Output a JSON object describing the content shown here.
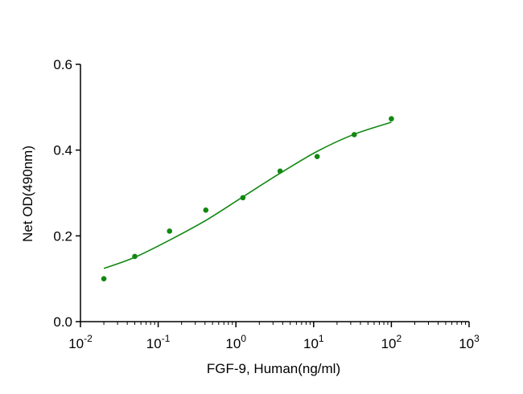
{
  "chart_data": {
    "type": "scatter",
    "xlabel": "FGF-9, Human(ng/ml)",
    "ylabel": "Net OD(490nm)",
    "x_scale": "log10",
    "xlim": [
      0.01,
      1000
    ],
    "ylim": [
      0,
      0.6
    ],
    "x_ticks": [
      {
        "base": "10",
        "exp": "-2"
      },
      {
        "base": "10",
        "exp": "-1"
      },
      {
        "base": "10",
        "exp": "0"
      },
      {
        "base": "10",
        "exp": "1"
      },
      {
        "base": "10",
        "exp": "2"
      },
      {
        "base": "10",
        "exp": "3"
      }
    ],
    "y_ticks": [
      "0.0",
      "0.2",
      "0.4",
      "0.6"
    ],
    "y_tick_values": [
      0,
      0.2,
      0.4,
      0.6
    ],
    "grid": false,
    "color": "#118811",
    "points": {
      "x": [
        0.02,
        0.05,
        0.14,
        0.41,
        1.23,
        3.7,
        11.1,
        33.3,
        100
      ],
      "y": [
        0.1,
        0.152,
        0.211,
        0.26,
        0.289,
        0.351,
        0.385,
        0.436,
        0.473
      ]
    },
    "fit_curve": {
      "x": [
        0.02,
        0.05,
        0.14,
        0.41,
        1.23,
        3.7,
        11.1,
        33.3,
        100
      ],
      "y": [
        0.124,
        0.15,
        0.19,
        0.236,
        0.291,
        0.346,
        0.397,
        0.437,
        0.465
      ]
    }
  }
}
